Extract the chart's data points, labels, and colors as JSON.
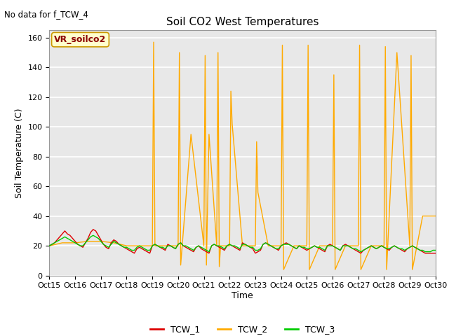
{
  "title": "Soil CO2 West Temperatures",
  "no_data_text": "No data for f_TCW_4",
  "ylabel": "Soil Temperature (C)",
  "xlabel": "Time",
  "annotation_label": "VR_soilco2",
  "ylim": [
    0,
    165
  ],
  "yticks": [
    0,
    20,
    40,
    60,
    80,
    100,
    120,
    140,
    160
  ],
  "xtick_labels": [
    "Oct 15",
    "Oct 16",
    "Oct 17",
    "Oct 18",
    "Oct 19",
    "Oct 20",
    "Oct 21",
    "Oct 22",
    "Oct 23",
    "Oct 24",
    "Oct 25",
    "Oct 26",
    "Oct 27",
    "Oct 28",
    "Oct 29",
    "Oct 30"
  ],
  "bg_color": "#e8e8e8",
  "fig_color": "#ffffff",
  "legend_entries": [
    "TCW_1",
    "TCW_2",
    "TCW_3"
  ],
  "legend_colors": [
    "#dd0000",
    "#ffaa00",
    "#00cc00"
  ],
  "line_colors": [
    "#dd0000",
    "#ffaa00",
    "#00cc00"
  ],
  "TCW_1_x": [
    0,
    0.1,
    0.2,
    0.3,
    0.4,
    0.5,
    0.6,
    0.7,
    0.8,
    0.9,
    1.0,
    1.1,
    1.2,
    1.3,
    1.4,
    1.5,
    1.6,
    1.7,
    1.8,
    1.9,
    2.0,
    2.1,
    2.2,
    2.3,
    2.4,
    2.5,
    2.6,
    2.7,
    2.8,
    2.9,
    3.0,
    3.1,
    3.2,
    3.3,
    3.4,
    3.5,
    3.6,
    3.7,
    3.8,
    3.9,
    4.0,
    4.1,
    4.2,
    4.3,
    4.4,
    4.5,
    4.6,
    4.7,
    4.8,
    4.9,
    5.0,
    5.1,
    5.2,
    5.3,
    5.4,
    5.5,
    5.6,
    5.7,
    5.8,
    5.9,
    6.0,
    6.1,
    6.2,
    6.3,
    6.4,
    6.5,
    6.6,
    6.7,
    6.8,
    6.9,
    7.0,
    7.1,
    7.2,
    7.3,
    7.4,
    7.5,
    7.6,
    7.7,
    7.8,
    7.9,
    8.0,
    8.1,
    8.2,
    8.3,
    8.4,
    8.5,
    8.6,
    8.7,
    8.8,
    8.9,
    9.0,
    9.1,
    9.2,
    9.3,
    9.4,
    9.5,
    9.6,
    9.7,
    9.8,
    9.9,
    10.0,
    10.1,
    10.2,
    10.3,
    10.4,
    10.5,
    10.6,
    10.7,
    10.8,
    10.9,
    11.0,
    11.1,
    11.2,
    11.3,
    11.4,
    11.5,
    11.6,
    11.7,
    11.8,
    11.9,
    12.0,
    12.1,
    12.2,
    12.3,
    12.4,
    12.5,
    12.6,
    12.7,
    12.8,
    12.9,
    13.0,
    13.1,
    13.2,
    13.3,
    13.4,
    13.5,
    13.6,
    13.7,
    13.8,
    13.9,
    14.0,
    14.1,
    14.2,
    14.3,
    14.4,
    14.5,
    14.6,
    14.7,
    14.8,
    14.9,
    15.0
  ],
  "TCW_1_y": [
    20,
    21,
    22,
    24,
    26,
    28,
    30,
    28,
    27,
    25,
    23,
    21,
    20,
    19,
    22,
    25,
    29,
    31,
    30,
    27,
    24,
    21,
    19,
    18,
    22,
    24,
    23,
    21,
    20,
    19,
    18,
    17,
    16,
    15,
    18,
    19,
    18,
    17,
    16,
    15,
    20,
    21,
    20,
    19,
    18,
    17,
    21,
    20,
    19,
    18,
    21,
    22,
    20,
    19,
    18,
    17,
    16,
    19,
    20,
    18,
    17,
    16,
    15,
    20,
    21,
    20,
    19,
    18,
    17,
    20,
    21,
    20,
    19,
    18,
    17,
    22,
    21,
    20,
    19,
    18,
    15,
    16,
    17,
    21,
    22,
    21,
    20,
    19,
    18,
    17,
    20,
    21,
    22,
    21,
    20,
    19,
    18,
    20,
    19,
    18,
    17,
    18,
    19,
    20,
    19,
    18,
    17,
    16,
    20,
    21,
    20,
    19,
    18,
    17,
    20,
    21,
    20,
    19,
    18,
    17,
    16,
    15,
    17,
    18,
    19,
    20,
    19,
    18,
    19,
    20,
    19,
    18,
    17,
    19,
    20,
    19,
    18,
    17,
    16,
    18,
    19,
    20,
    19,
    18,
    17,
    16,
    15,
    15,
    15,
    15,
    15
  ],
  "TCW_3_x": [
    0,
    0.1,
    0.2,
    0.3,
    0.4,
    0.5,
    0.6,
    0.7,
    0.8,
    0.9,
    1.0,
    1.1,
    1.2,
    1.3,
    1.4,
    1.5,
    1.6,
    1.7,
    1.8,
    1.9,
    2.0,
    2.1,
    2.2,
    2.3,
    2.4,
    2.5,
    2.6,
    2.7,
    2.8,
    2.9,
    3.0,
    3.1,
    3.2,
    3.3,
    3.4,
    3.5,
    3.6,
    3.7,
    3.8,
    3.9,
    4.0,
    4.1,
    4.2,
    4.3,
    4.4,
    4.5,
    4.6,
    4.7,
    4.8,
    4.9,
    5.0,
    5.1,
    5.2,
    5.3,
    5.4,
    5.5,
    5.6,
    5.7,
    5.8,
    5.9,
    6.0,
    6.1,
    6.2,
    6.3,
    6.4,
    6.5,
    6.6,
    6.7,
    6.8,
    6.9,
    7.0,
    7.1,
    7.2,
    7.3,
    7.4,
    7.5,
    7.6,
    7.7,
    7.8,
    7.9,
    8.0,
    8.1,
    8.2,
    8.3,
    8.4,
    8.5,
    8.6,
    8.7,
    8.8,
    8.9,
    9.0,
    9.1,
    9.2,
    9.3,
    9.4,
    9.5,
    9.6,
    9.7,
    9.8,
    9.9,
    10.0,
    10.1,
    10.2,
    10.3,
    10.4,
    10.5,
    10.6,
    10.7,
    10.8,
    10.9,
    11.0,
    11.1,
    11.2,
    11.3,
    11.4,
    11.5,
    11.6,
    11.7,
    11.8,
    11.9,
    12.0,
    12.1,
    12.2,
    12.3,
    12.4,
    12.5,
    12.6,
    12.7,
    12.8,
    12.9,
    13.0,
    13.1,
    13.2,
    13.3,
    13.4,
    13.5,
    13.6,
    13.7,
    13.8,
    13.9,
    14.0,
    14.1,
    14.2,
    14.3,
    14.4,
    14.5,
    14.6,
    14.7,
    14.8,
    14.9,
    15.0
  ],
  "TCW_3_y": [
    20,
    21,
    22,
    23,
    24,
    25,
    26,
    25,
    24,
    23,
    22,
    21,
    20,
    20,
    22,
    24,
    26,
    27,
    26,
    25,
    23,
    21,
    20,
    19,
    21,
    23,
    22,
    21,
    20,
    19,
    19,
    18,
    17,
    17,
    19,
    20,
    19,
    18,
    17,
    17,
    20,
    21,
    20,
    19,
    19,
    18,
    20,
    20,
    19,
    18,
    21,
    22,
    20,
    20,
    19,
    18,
    17,
    19,
    20,
    19,
    18,
    17,
    16,
    20,
    21,
    20,
    20,
    19,
    18,
    20,
    21,
    20,
    20,
    19,
    18,
    21,
    21,
    20,
    19,
    19,
    17,
    17,
    18,
    21,
    22,
    21,
    20,
    19,
    18,
    18,
    20,
    21,
    21,
    21,
    20,
    19,
    18,
    20,
    19,
    19,
    18,
    18,
    19,
    20,
    19,
    19,
    18,
    17,
    20,
    20,
    20,
    19,
    18,
    17,
    20,
    20,
    20,
    19,
    18,
    18,
    17,
    16,
    17,
    18,
    19,
    20,
    19,
    18,
    19,
    20,
    19,
    18,
    18,
    19,
    20,
    19,
    18,
    18,
    17,
    18,
    19,
    20,
    19,
    18,
    17,
    17,
    16,
    16,
    16,
    17,
    17
  ],
  "TCW_2_x": [
    0,
    0.5,
    1.0,
    1.5,
    2.0,
    2.5,
    3.0,
    3.5,
    4.0,
    4.05,
    4.1,
    4.5,
    5.0,
    5.05,
    5.1,
    5.5,
    6.0,
    6.05,
    6.1,
    6.2,
    6.5,
    6.55,
    6.6,
    6.65,
    7.0,
    7.05,
    7.1,
    7.5,
    8.0,
    8.05,
    8.1,
    8.5,
    9.0,
    9.05,
    9.1,
    9.5,
    10.0,
    10.05,
    10.1,
    10.5,
    11.0,
    11.05,
    11.1,
    11.5,
    12.0,
    12.05,
    12.1,
    12.5,
    13.0,
    13.05,
    13.1,
    13.5,
    14.0,
    14.05,
    14.1,
    14.5,
    15.0
  ],
  "TCW_2_y": [
    20,
    22,
    22,
    23,
    23,
    22,
    20,
    20,
    20,
    157,
    20,
    20,
    20,
    150,
    7,
    95,
    20,
    148,
    7,
    95,
    20,
    150,
    6,
    20,
    20,
    124,
    102,
    20,
    20,
    90,
    56,
    20,
    20,
    155,
    4,
    20,
    20,
    155,
    4,
    20,
    20,
    135,
    4,
    20,
    20,
    155,
    4,
    20,
    20,
    154,
    4,
    150,
    20,
    148,
    4,
    40,
    40
  ],
  "figsize": [
    6.4,
    4.8
  ],
  "dpi": 100,
  "title_fontsize": 11,
  "axis_fontsize": 8,
  "ylabel_fontsize": 9,
  "annotation_facecolor": "#ffffcc",
  "annotation_edgecolor": "#cc9900",
  "annotation_textcolor": "#8B0000"
}
